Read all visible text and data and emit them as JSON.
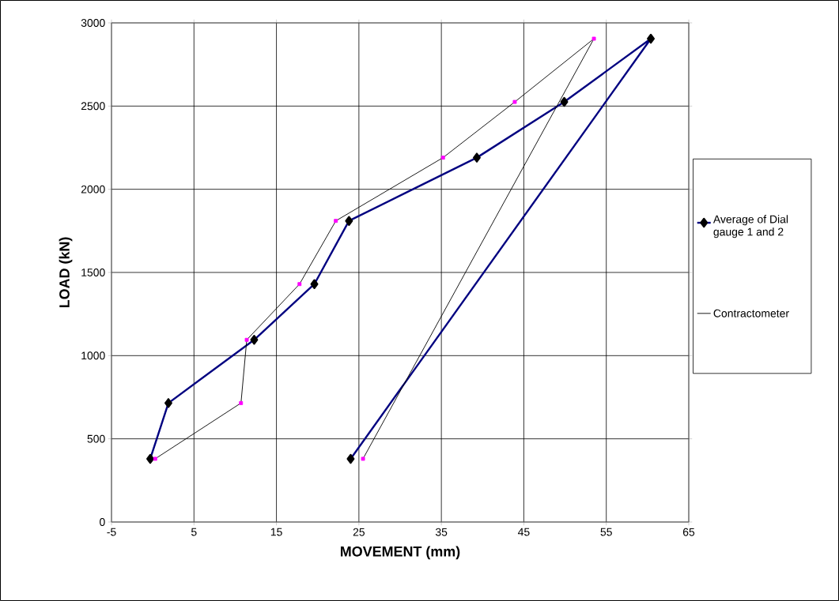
{
  "chart_data": {
    "type": "line",
    "xlabel": "MOVEMENT (mm)",
    "ylabel": "LOAD (kN)",
    "xlim": [
      -5,
      65
    ],
    "xticks": [
      -5,
      5,
      15,
      25,
      35,
      45,
      55,
      65
    ],
    "ylim": [
      0,
      3000
    ],
    "yticks": [
      0,
      500,
      1000,
      1500,
      2000,
      2500,
      3000
    ],
    "grid": true,
    "legend": "right",
    "series": [
      {
        "name": "Average of Dial gauge 1 and 2",
        "color": "#000080",
        "marker": "diamond",
        "x": [
          -0.3,
          1.9,
          12.3,
          19.6,
          23.8,
          39.3,
          49.9,
          60.4,
          24.0
        ],
        "values": [
          380,
          715,
          1095,
          1430,
          1810,
          2190,
          2525,
          2905,
          380
        ]
      },
      {
        "name": "Contractometer",
        "color": "#000000",
        "marker": "none",
        "x": [
          0.3,
          10.7,
          11.4,
          17.8,
          22.2,
          35.2,
          43.9,
          53.5,
          25.5
        ],
        "values": [
          380,
          715,
          1095,
          1430,
          1810,
          2190,
          2525,
          2905,
          380
        ]
      },
      {
        "type": "scatter",
        "color": "#ff00ff",
        "marker": "square",
        "x": [
          0.3,
          10.7,
          11.4,
          17.8,
          22.2,
          35.2,
          43.9,
          53.5,
          25.5
        ],
        "values": [
          380,
          715,
          1095,
          1430,
          1810,
          2190,
          2525,
          2905,
          380
        ]
      }
    ]
  }
}
